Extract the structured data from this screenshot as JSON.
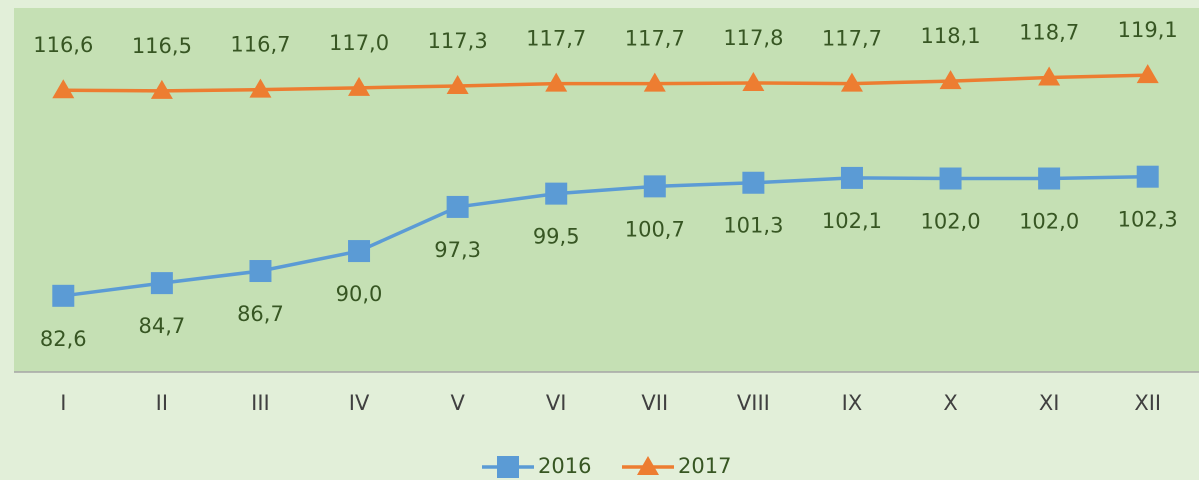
{
  "chart_data": {
    "type": "line",
    "categories": [
      "I",
      "II",
      "III",
      "IV",
      "V",
      "VI",
      "VII",
      "VIII",
      "IX",
      "X",
      "XI",
      "XII"
    ],
    "series": [
      {
        "name": "2016",
        "color": "#5b9bd5",
        "marker": "square",
        "values": [
          82.6,
          84.7,
          86.7,
          90.0,
          97.3,
          99.5,
          100.7,
          101.3,
          102.1,
          102.0,
          102.0,
          102.3
        ],
        "value_labels": [
          "82,6",
          "84,7",
          "86,7",
          "90,0",
          "97,3",
          "99,5",
          "100,7",
          "101,3",
          "102,1",
          "102,0",
          "102,0",
          "102,3"
        ]
      },
      {
        "name": "2017",
        "color": "#ed7d31",
        "marker": "triangle",
        "values": [
          116.6,
          116.5,
          116.7,
          117.0,
          117.3,
          117.7,
          117.7,
          117.8,
          117.7,
          118.1,
          118.7,
          119.1
        ],
        "value_labels": [
          "116,6",
          "116,5",
          "116,7",
          "117,0",
          "117,3",
          "117,7",
          "117,7",
          "117,8",
          "117,7",
          "118,1",
          "118,7",
          "119,1"
        ]
      }
    ],
    "ylim": [
      70,
      130.2
    ],
    "legend": "bottom"
  }
}
